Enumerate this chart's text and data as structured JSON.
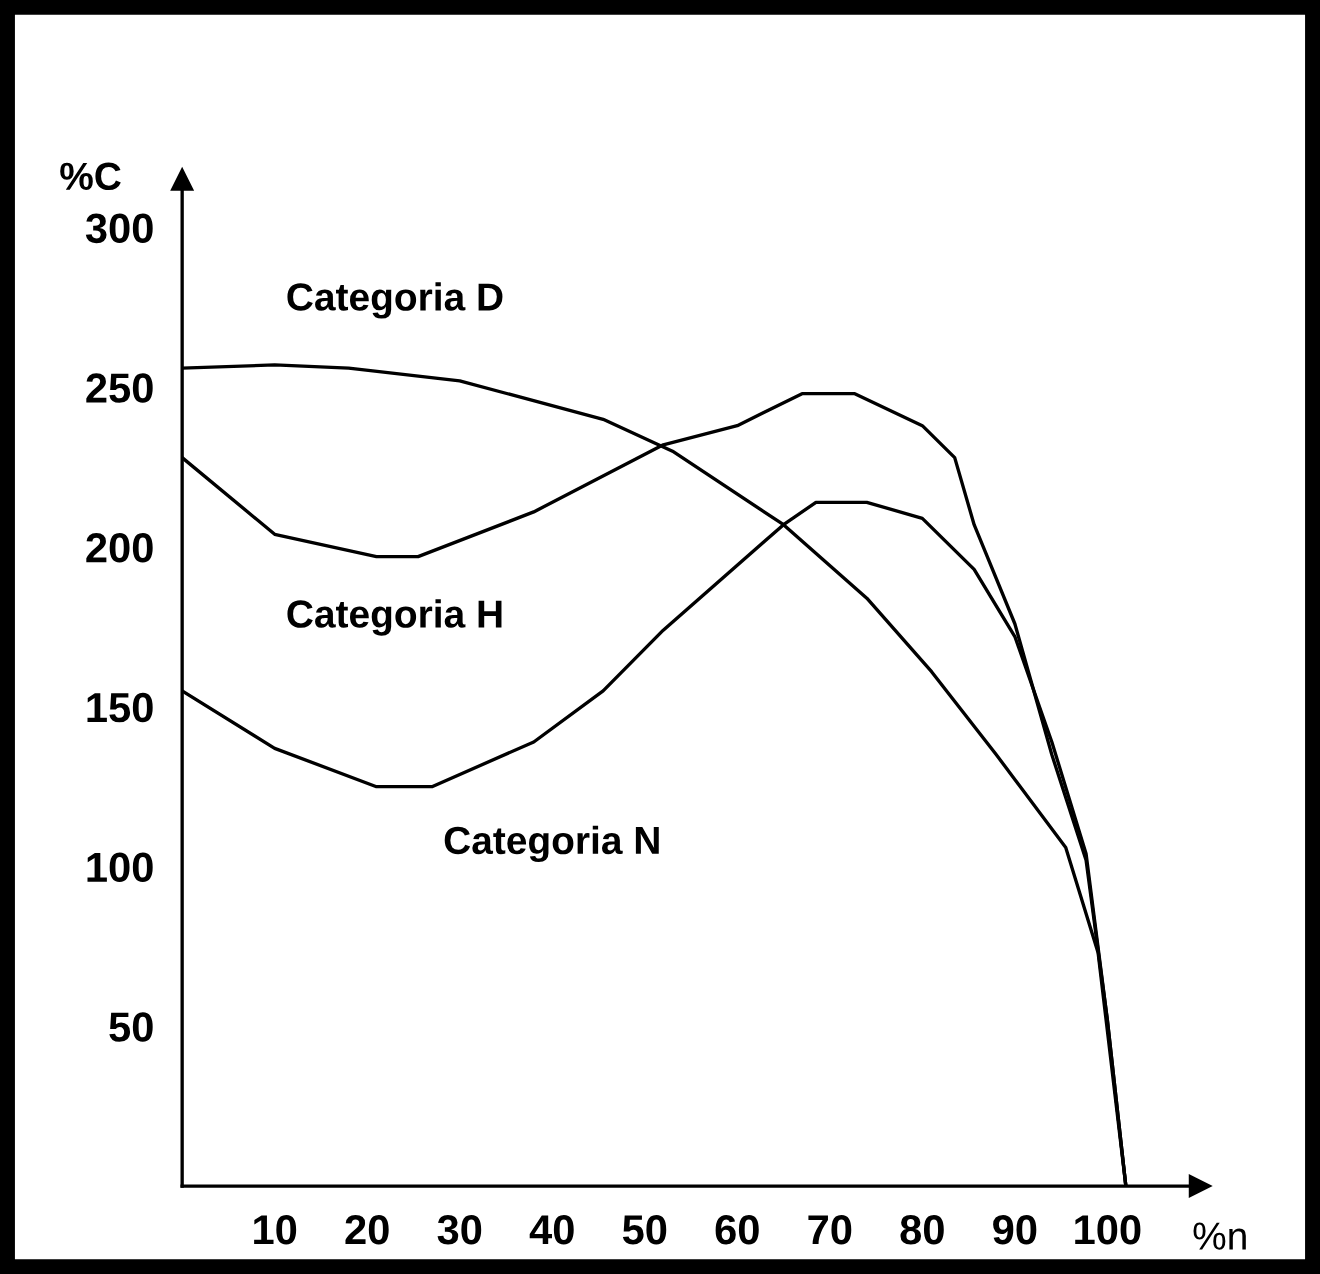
{
  "chart_data": {
    "type": "line",
    "xlabel": "%n",
    "ylabel": "%C",
    "xlim": [
      0,
      110
    ],
    "ylim": [
      0,
      315
    ],
    "xticks": [
      10,
      20,
      30,
      40,
      50,
      60,
      70,
      80,
      90,
      100
    ],
    "yticks": [
      50,
      100,
      150,
      200,
      250,
      300
    ],
    "grid": false,
    "legend": false,
    "marker": "none",
    "line_style": "solid",
    "series": [
      {
        "name": "Categoria D",
        "color": "#000000",
        "x": [
          0,
          10,
          18,
          30,
          45.5,
          53,
          65,
          74,
          81,
          88,
          95.5,
          99,
          102
        ],
        "values": [
          256,
          257,
          256,
          252,
          240,
          230,
          207,
          184,
          161,
          135,
          106,
          73,
          0
        ]
      },
      {
        "name": "Categoria H",
        "color": "#000000",
        "x": [
          0,
          10,
          21,
          25.5,
          38,
          52,
          60,
          67,
          72.7,
          80,
          83.5,
          85.6,
          90,
          94,
          97.7,
          100,
          102
        ],
        "values": [
          228,
          204,
          197,
          197,
          211,
          232,
          238,
          248,
          248,
          238,
          228,
          207,
          176,
          135,
          102,
          52,
          0
        ]
      },
      {
        "name": "Categoria N",
        "color": "#000000",
        "x": [
          0,
          10,
          21,
          27,
          38,
          45.5,
          52,
          65,
          68.5,
          74,
          80,
          85.6,
          90,
          94,
          97.7,
          100,
          102
        ],
        "values": [
          155,
          137,
          125,
          125,
          139,
          155,
          174,
          207,
          214,
          214,
          209,
          193,
          172,
          139,
          104,
          52,
          0
        ]
      }
    ]
  }
}
